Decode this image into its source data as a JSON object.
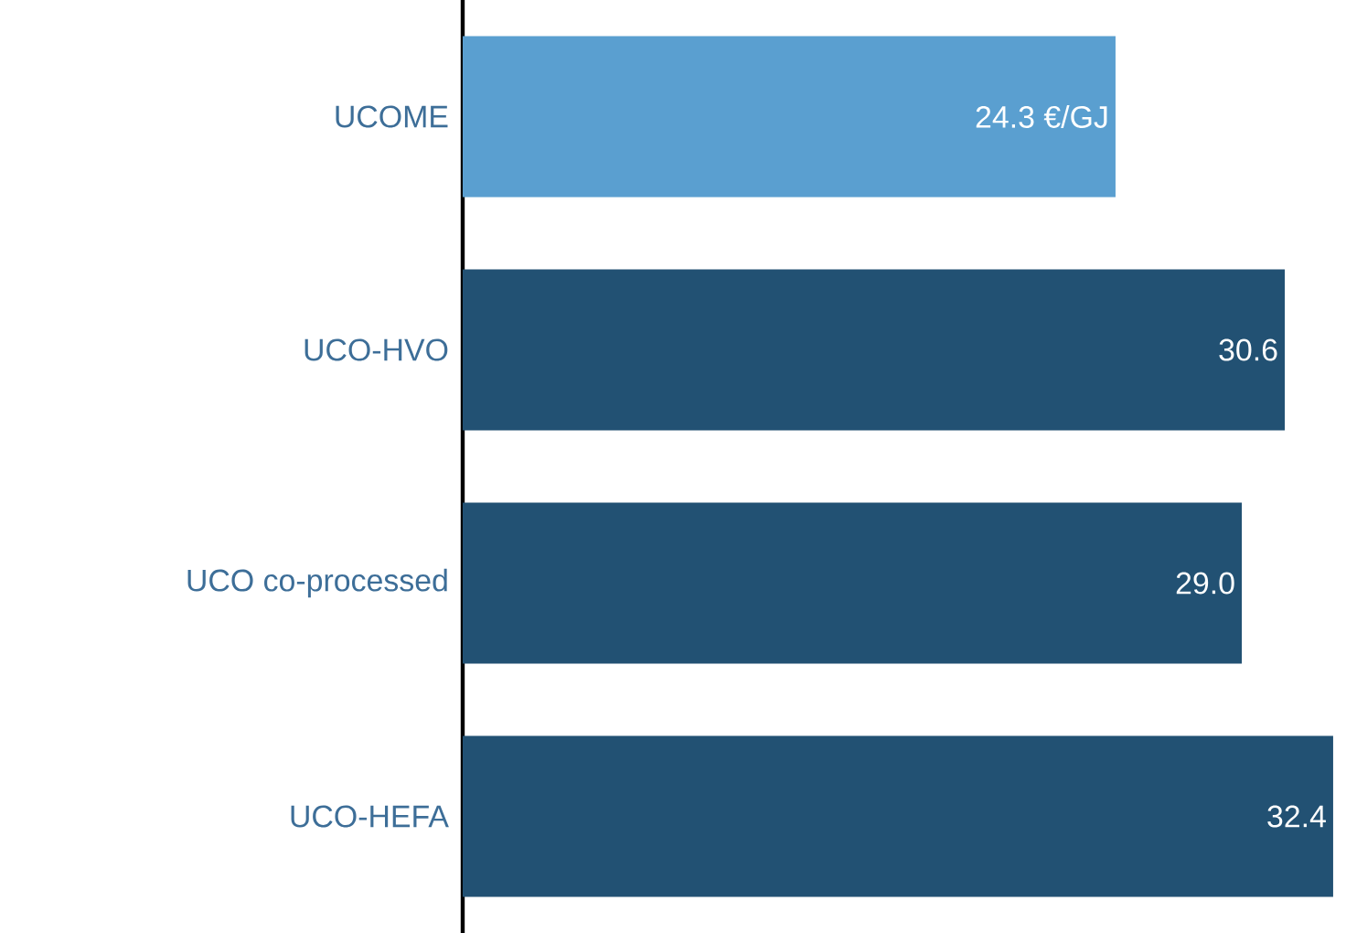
{
  "chart_data": {
    "type": "bar",
    "orientation": "horizontal",
    "categories": [
      "UCOME",
      "UCO-HVO",
      "UCO co-processed",
      "UCO-HEFA"
    ],
    "values": [
      24.3,
      30.6,
      29.0,
      32.4
    ],
    "colors": [
      "#5a9fd0",
      "#225173",
      "#225173",
      "#225173"
    ],
    "value_labels": [
      "24.3 €/GJ",
      "30.6",
      "29.0",
      "32.4"
    ]
  }
}
